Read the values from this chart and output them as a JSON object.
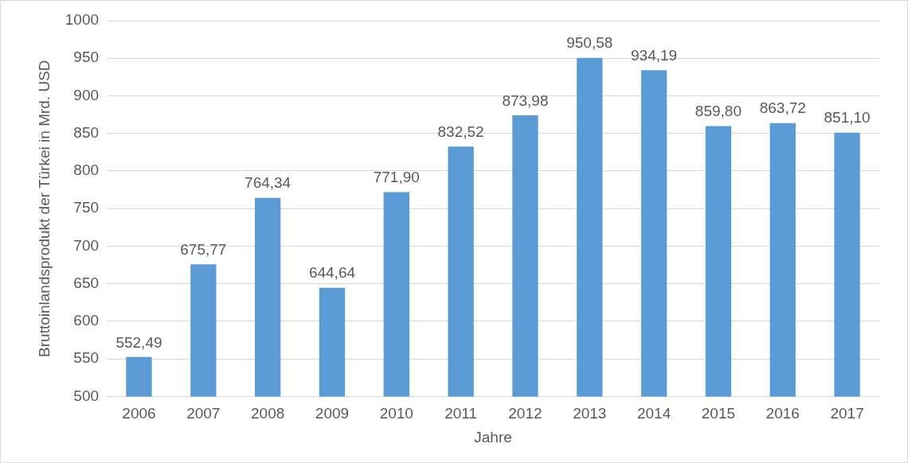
{
  "chart_data": {
    "type": "bar",
    "xlabel": "Jahre",
    "ylabel": "Bruttoinlandsprodukt der Türkei in Mrd. USD",
    "categories": [
      "2006",
      "2007",
      "2008",
      "2009",
      "2010",
      "2011",
      "2012",
      "2013",
      "2014",
      "2015",
      "2016",
      "2017"
    ],
    "values": [
      552.49,
      675.77,
      764.34,
      644.64,
      771.9,
      832.52,
      873.98,
      950.58,
      934.19,
      859.8,
      863.72,
      851.1
    ],
    "value_labels": [
      "552,49",
      "675,77",
      "764,34",
      "644,64",
      "771,90",
      "832,52",
      "873,98",
      "950,58",
      "934,19",
      "859,80",
      "863,72",
      "851,10"
    ],
    "color": "#5b9bd5",
    "ylim": [
      500,
      1000
    ],
    "yticks": [
      500,
      550,
      600,
      650,
      700,
      750,
      800,
      850,
      900,
      950,
      1000
    ],
    "grid": "y",
    "legend": false
  }
}
